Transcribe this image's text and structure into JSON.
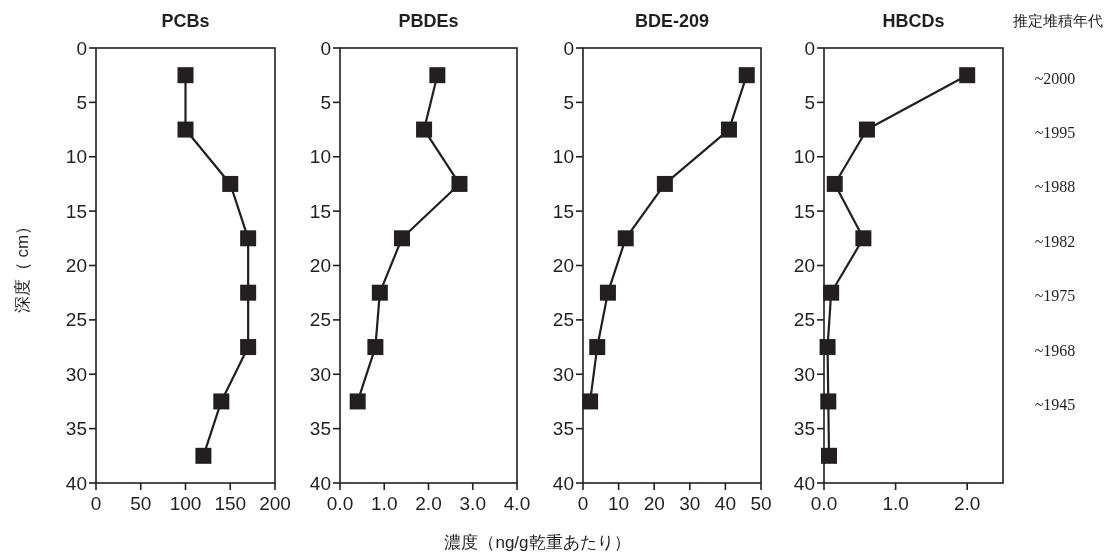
{
  "chart_data": [
    {
      "type": "line",
      "title": "PCBs",
      "orientation": "horizontal",
      "ylabel": "深度（ cm）",
      "marker": "square",
      "color": "#231f20",
      "x": [
        2.5,
        7.5,
        12.5,
        17.5,
        22.5,
        27.5,
        32.5,
        37.5
      ],
      "values": [
        100,
        100,
        150,
        170,
        170,
        170,
        140,
        120
      ],
      "xlim": [
        0,
        200
      ],
      "xticks": [
        0,
        50,
        100,
        150,
        200
      ],
      "ylim": [
        40,
        0
      ],
      "yticks": [
        0,
        5,
        10,
        15,
        20,
        25,
        30,
        35,
        40
      ]
    },
    {
      "type": "line",
      "title": "PBDEs",
      "orientation": "horizontal",
      "marker": "square",
      "color": "#231f20",
      "x": [
        2.5,
        7.5,
        12.5,
        17.5,
        22.5,
        27.5,
        32.5
      ],
      "values": [
        2.2,
        1.9,
        2.7,
        1.4,
        0.9,
        0.8,
        0.4
      ],
      "xlim": [
        0,
        4
      ],
      "xticks": [
        {
          "value": 0,
          "label": "0.0"
        },
        {
          "value": 1,
          "label": "1.0"
        },
        {
          "value": 2,
          "label": "2.0"
        },
        {
          "value": 3,
          "label": "3.0"
        },
        {
          "value": 4,
          "label": "4.0"
        }
      ],
      "ylim": [
        40,
        0
      ],
      "yticks": [
        0,
        5,
        10,
        15,
        20,
        25,
        30,
        35,
        40
      ]
    },
    {
      "type": "line",
      "title": "BDE-209",
      "orientation": "horizontal",
      "marker": "square",
      "color": "#231f20",
      "xlabel": "濃度（ng/g乾重あたり）",
      "x": [
        2.5,
        7.5,
        12.5,
        17.5,
        22.5,
        27.5,
        32.5
      ],
      "values": [
        46,
        41,
        23,
        12,
        7,
        4,
        2
      ],
      "xlim": [
        0,
        50
      ],
      "xticks": [
        0,
        10,
        20,
        30,
        40,
        50
      ],
      "ylim": [
        40,
        0
      ],
      "yticks": [
        0,
        5,
        10,
        15,
        20,
        25,
        30,
        35,
        40
      ]
    },
    {
      "type": "line",
      "title": "HBCDs",
      "orientation": "horizontal",
      "marker": "square",
      "color": "#231f20",
      "x": [
        2.5,
        7.5,
        12.5,
        17.5,
        22.5,
        27.5,
        32.5,
        37.5
      ],
      "values": [
        2.0,
        0.6,
        0.15,
        0.55,
        0.1,
        0.05,
        0.06,
        0.07
      ],
      "xlim": [
        0,
        2.5
      ],
      "xticks": [
        {
          "value": 0,
          "label": "0.0"
        },
        {
          "value": 1,
          "label": "1.0"
        },
        {
          "value": 2,
          "label": "2.0"
        }
      ],
      "ylim": [
        40,
        0
      ],
      "yticks": [
        0,
        5,
        10,
        15,
        20,
        25,
        30,
        35,
        40
      ],
      "annotations": [
        "推定堆積年代",
        "~2000",
        "~1995",
        "~1988",
        "~1982",
        "~1975",
        "~1968",
        "~1945"
      ]
    }
  ]
}
